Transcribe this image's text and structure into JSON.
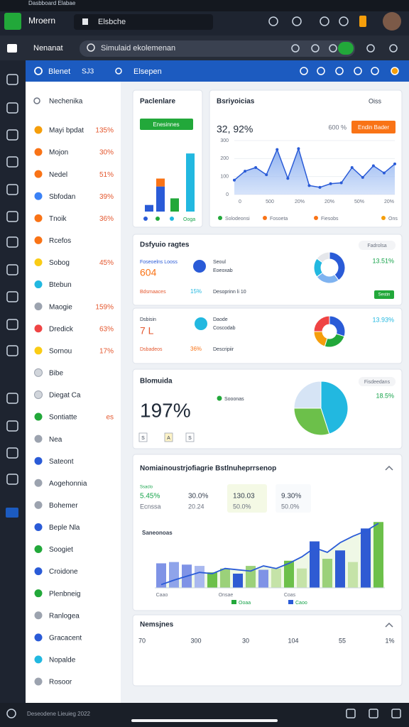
{
  "header": {
    "tabs": [
      "Dasbboard Elabae",
      "Elsbche"
    ],
    "app_name": "Mroern",
    "profile": "Nenanat",
    "search": "Simulaid ekolemenan"
  },
  "toolbar": {
    "title": "Blenet",
    "code": "SJ3",
    "link": "Elsepen"
  },
  "sidebar": {
    "search": "Nechenika",
    "items": [
      {
        "label": "Mayi bpdat",
        "value": "135%",
        "icon": "#f59e0b"
      },
      {
        "label": "Mojon",
        "value": "30%",
        "icon": "#f97316"
      },
      {
        "label": "Nedel",
        "value": "51%",
        "icon": "#f97316"
      },
      {
        "label": "Sbfodan",
        "value": "39%",
        "icon": "#3b82f6"
      },
      {
        "label": "Tnoik",
        "value": "36%",
        "icon": "#f97316"
      },
      {
        "label": "Rcefos",
        "icon": "#f97316"
      },
      {
        "label": "Sobog",
        "value": "45%",
        "icon": "#facc15"
      },
      {
        "label": "Btebun",
        "icon": "#22b8e0"
      },
      {
        "label": "Maogie",
        "value": "159%",
        "icon": "#9ca3af"
      },
      {
        "label": "Dredick",
        "value": "63%",
        "icon": "#ef4444"
      },
      {
        "label": "Sornou",
        "value": "17%",
        "icon": "#facc15"
      },
      {
        "label": "Bibe",
        "icon": "#d1d5db"
      },
      {
        "label": "Diegat Ca",
        "icon": "#d1d5db"
      },
      {
        "label": "Sontiatte",
        "value": "es",
        "icon": "#22a83a"
      },
      {
        "label": "Nea",
        "icon": "#9ca3af"
      },
      {
        "label": "Sateont",
        "icon": "#2a5bd7"
      },
      {
        "label": "Aogehonnia",
        "icon": "#9ca3af"
      },
      {
        "label": "Bohemer",
        "icon": "#9ca3af"
      },
      {
        "label": "Beple Nla",
        "icon": "#2a5bd7"
      },
      {
        "label": "Soogiet",
        "icon": "#22a83a"
      },
      {
        "label": "Croidone",
        "icon": "#2a5bd7"
      },
      {
        "label": "Plenbneig",
        "icon": "#22a83a"
      },
      {
        "label": "Ranlogea",
        "icon": "#9ca3af"
      },
      {
        "label": "Gracacent",
        "icon": "#2a5bd7"
      },
      {
        "label": "Nopalde",
        "icon": "#22b8e0"
      },
      {
        "label": "Rosoor",
        "icon": "#9ca3af"
      }
    ]
  },
  "card_overview": {
    "title": "Paclenlare",
    "button": "Enesinnes",
    "legend": "Ooga",
    "chart": {
      "type": "bar",
      "values": [
        10,
        38,
        20,
        88
      ],
      "colors": [
        "#2a5bd7",
        "#2a5bd7",
        "#22a83a",
        "#22b8e0"
      ],
      "caps": [
        null,
        12,
        null,
        null
      ],
      "cap_color": "#f97316",
      "ylim": [
        0,
        100
      ]
    }
  },
  "card_trend": {
    "title": "Bsriyoicias",
    "meta": "Oiss",
    "value": "32, 92%",
    "change": "600 %",
    "button": "Endin Bader",
    "chart": {
      "type": "area",
      "values": [
        80,
        130,
        150,
        110,
        250,
        90,
        255,
        50,
        40,
        60,
        65,
        150,
        95,
        160,
        120,
        170
      ],
      "ylim": [
        0,
        300
      ],
      "yticks": [
        0,
        100,
        200,
        300
      ],
      "xlabels": [
        "0",
        "500",
        "20%",
        "20%",
        "50%",
        "20%"
      ],
      "line_color": "#2a5bd7",
      "fill_color": "#8fb2f0",
      "grid": true
    },
    "legend": [
      "Solodeonsi",
      "Fosoeta",
      "Fiesobs",
      "Ons"
    ]
  },
  "card_ratios": {
    "title": "Dsfyuio ragtes",
    "filter": "Fadrolsa",
    "label": "Foseoelns Looss",
    "value": "604",
    "sub": "Bdsmaaces",
    "pct": "15%",
    "legend": [
      "Seoul",
      "Eoeoxab"
    ],
    "note": "Desoprinn li 10",
    "right_pct": "13.51%",
    "button": "Sestin",
    "donut": {
      "type": "donut",
      "values": [
        40,
        25,
        20,
        15
      ],
      "colors": [
        "#2a5bd7",
        "#7fb3f0",
        "#22b8e0",
        "#e5e7eb"
      ]
    }
  },
  "card_ratios_2": {
    "label": "Dsbisin",
    "value": "7 L",
    "sub": "Dsbadeos",
    "pct": "36%",
    "legend": [
      "Daode",
      "Coscodab"
    ],
    "note": "Descripiir",
    "right_pct": "13.93%",
    "donut": {
      "type": "donut",
      "values": [
        30,
        25,
        20,
        25
      ],
      "colors": [
        "#2a5bd7",
        "#22a83a",
        "#f59e0b",
        "#ef4444"
      ]
    }
  },
  "card_share": {
    "title": "Blomuida",
    "value": "197%",
    "legend": "Sooonas",
    "filter": "Fisdeedans",
    "icons": [
      "S",
      "A",
      "S"
    ],
    "right_pct": "18.5%",
    "pie": {
      "type": "pie",
      "values": [
        45,
        30,
        25
      ],
      "colors": [
        "#22b8e0",
        "#6cc04a",
        "#d6e4f5"
      ]
    }
  },
  "card_perf": {
    "title": "Nomiainoustrjofiagrie Bstlnuheprrsenop",
    "stats": [
      {
        "label": "Ssaclo",
        "value": "5.45%",
        "sub": "Ecnssa"
      },
      {
        "value": "30.0%",
        "sub": "20.24"
      },
      {
        "value": "130.03",
        "sub": "50.0%"
      },
      {
        "value": "9.30%",
        "sub": "50.0%"
      }
    ],
    "subtitle": "Saneonoas",
    "chart": {
      "type": "combo",
      "ylim": [
        0,
        110
      ],
      "bars": [
        38,
        40,
        36,
        34,
        24,
        30,
        22,
        34,
        28,
        30,
        42,
        30,
        72,
        45,
        58,
        40,
        92,
        102
      ],
      "bar_colors": [
        "#7f93e6",
        "#8fa4ea",
        "#7f93e6",
        "#a9b8ef",
        "#6cc04a",
        "#9bd17a",
        "#2f5bd3",
        "#9bd17a",
        "#7f93e6",
        "#c5e3a8",
        "#6cc04a",
        "#c5e3a8",
        "#2f5bd3",
        "#9bd17a",
        "#2f5bd3",
        "#c5e3a8",
        "#2f5bd3",
        "#6cc04a"
      ],
      "line": [
        5,
        12,
        18,
        24,
        22,
        30,
        28,
        26,
        34,
        30,
        38,
        48,
        62,
        55,
        70,
        80,
        88,
        100
      ],
      "line_color": "#2a5bd7",
      "xlabels": [
        "Caao",
        "Onsae",
        "Coas"
      ]
    },
    "legend": [
      "Ooaa",
      "Caoo"
    ]
  },
  "card_list": {
    "title": "Nemsjnes",
    "row": [
      "70",
      "300",
      "30",
      "104",
      "55",
      "1%"
    ]
  },
  "footer": "Deseodene Lieuieg 2022"
}
